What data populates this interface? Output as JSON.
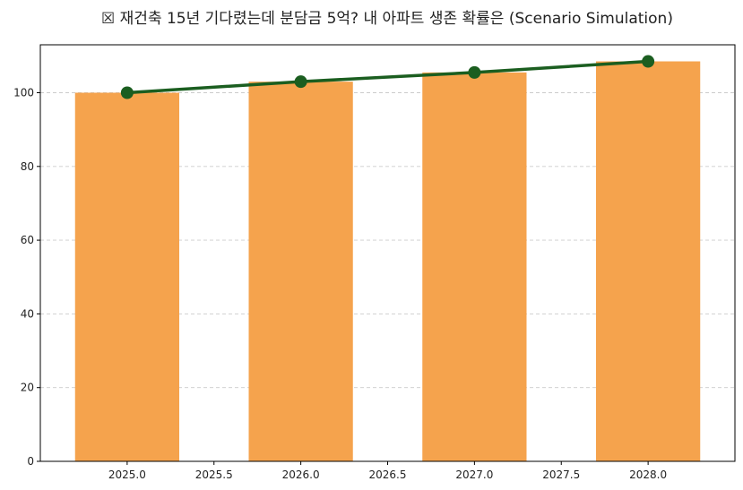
{
  "chart_data": {
    "type": "bar",
    "title": "☒ 재건축 15년 기다렸는데 분담금 5억? 내 아파트 생존 확률은 (Scenario Simulation)",
    "xlabel": "",
    "ylabel": "",
    "xlim": [
      2024.5,
      2028.5
    ],
    "ylim": [
      0,
      113
    ],
    "x_ticks": [
      2025.0,
      2025.5,
      2026.0,
      2026.5,
      2027.0,
      2027.5,
      2028.0
    ],
    "x_tick_labels": [
      "2025.0",
      "2025.5",
      "2026.0",
      "2026.5",
      "2027.0",
      "2027.5",
      "2028.0"
    ],
    "y_ticks": [
      0,
      20,
      40,
      60,
      80,
      100
    ],
    "y_tick_labels": [
      "0",
      "20",
      "40",
      "60",
      "80",
      "100"
    ],
    "grid": "horizontal dashed",
    "x": [
      2025,
      2026,
      2027,
      2028
    ],
    "bar_width": 0.6,
    "series": [
      {
        "type": "bar",
        "values": [
          100,
          103,
          105.5,
          108.5
        ],
        "color": "#f5a34d"
      },
      {
        "type": "line",
        "values": [
          100,
          103,
          105.5,
          108.5
        ],
        "color": "#1b5e20",
        "marker": "circle"
      }
    ]
  }
}
